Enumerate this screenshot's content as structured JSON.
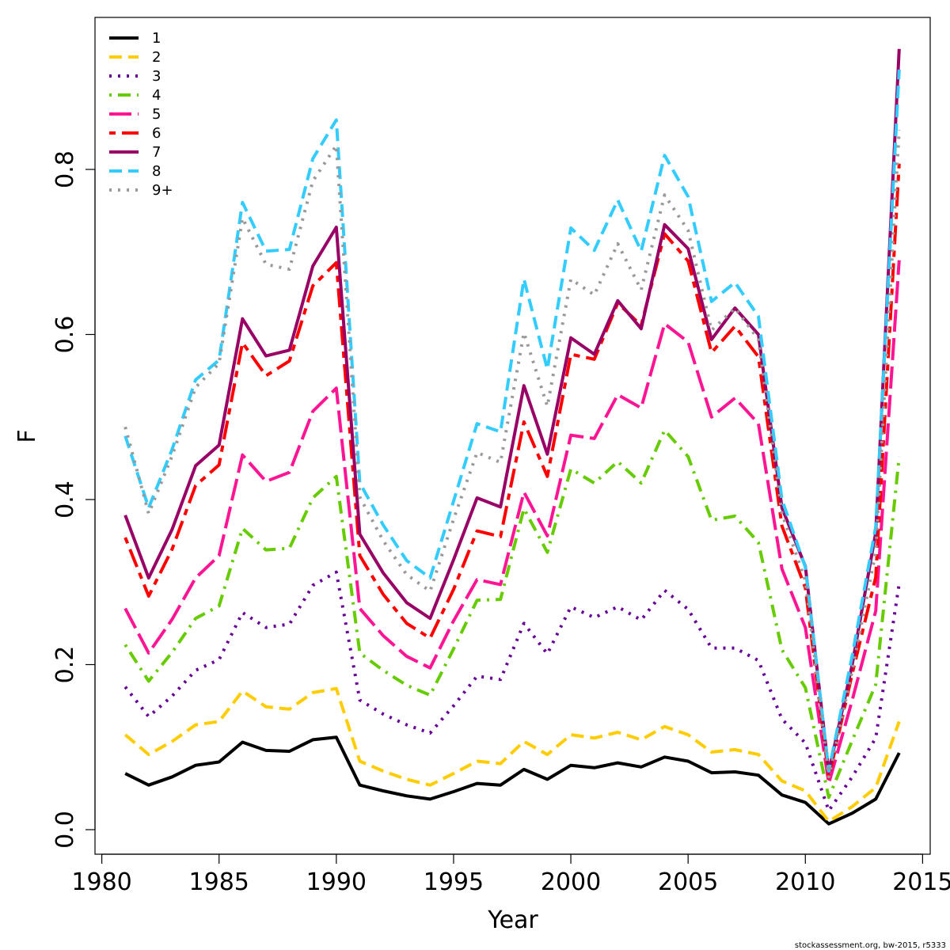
{
  "chart_data": {
    "type": "line",
    "xlabel": "Year",
    "ylabel": "F",
    "xlim": [
      1980,
      2015
    ],
    "ylim": [
      0.0,
      0.95
    ],
    "x_ticks": [
      1980,
      1985,
      1990,
      1995,
      2000,
      2005,
      2010,
      2015
    ],
    "x_tick_labels": [
      "1980",
      "1985",
      "1990",
      "1995",
      "2000",
      "2005",
      "2010",
      "2015"
    ],
    "y_ticks": [
      0.0,
      0.2,
      0.4,
      0.6,
      0.8
    ],
    "y_tick_labels": [
      "0.0",
      "0.2",
      "0.4",
      "0.6",
      "0.8"
    ],
    "grid": false,
    "legend_position": "top-left",
    "x": [
      1981,
      1982,
      1983,
      1984,
      1985,
      1986,
      1987,
      1988,
      1989,
      1990,
      1991,
      1992,
      1993,
      1994,
      1995,
      1996,
      1997,
      1998,
      1999,
      2000,
      2001,
      2002,
      2003,
      2004,
      2005,
      2006,
      2007,
      2008,
      2009,
      2010,
      2011,
      2012,
      2013,
      2014
    ],
    "series": [
      {
        "name": "1",
        "color": "#000000",
        "dash": "solid",
        "values": [
          0.068,
          0.054,
          0.064,
          0.078,
          0.082,
          0.106,
          0.096,
          0.095,
          0.109,
          0.112,
          0.054,
          0.047,
          0.041,
          0.037,
          0.046,
          0.056,
          0.054,
          0.073,
          0.061,
          0.078,
          0.075,
          0.081,
          0.076,
          0.088,
          0.083,
          0.069,
          0.07,
          0.066,
          0.042,
          0.033,
          0.007,
          0.02,
          0.037,
          0.093
        ]
      },
      {
        "name": "2",
        "color": "#FFCC00",
        "dash": "dashed",
        "values": [
          0.115,
          0.091,
          0.107,
          0.127,
          0.131,
          0.168,
          0.149,
          0.146,
          0.166,
          0.171,
          0.083,
          0.071,
          0.061,
          0.054,
          0.068,
          0.083,
          0.08,
          0.107,
          0.091,
          0.115,
          0.111,
          0.118,
          0.109,
          0.125,
          0.115,
          0.094,
          0.097,
          0.091,
          0.059,
          0.047,
          0.01,
          0.028,
          0.051,
          0.131
        ]
      },
      {
        "name": "3",
        "color": "#660099",
        "dash": "dotted",
        "values": [
          0.173,
          0.137,
          0.162,
          0.193,
          0.206,
          0.263,
          0.245,
          0.249,
          0.296,
          0.312,
          0.157,
          0.14,
          0.127,
          0.117,
          0.15,
          0.186,
          0.182,
          0.25,
          0.213,
          0.27,
          0.257,
          0.27,
          0.254,
          0.29,
          0.267,
          0.22,
          0.22,
          0.205,
          0.134,
          0.105,
          0.023,
          0.064,
          0.111,
          0.298
        ]
      },
      {
        "name": "4",
        "color": "#66CC00",
        "dash": "dotdash",
        "values": [
          0.224,
          0.18,
          0.215,
          0.256,
          0.271,
          0.365,
          0.339,
          0.341,
          0.402,
          0.428,
          0.214,
          0.193,
          0.175,
          0.163,
          0.219,
          0.278,
          0.279,
          0.389,
          0.336,
          0.437,
          0.42,
          0.446,
          0.42,
          0.484,
          0.452,
          0.375,
          0.38,
          0.348,
          0.218,
          0.172,
          0.039,
          0.108,
          0.176,
          0.452
        ]
      },
      {
        "name": "5",
        "color": "#FF1493",
        "dash": "longdash",
        "values": [
          0.268,
          0.214,
          0.255,
          0.305,
          0.332,
          0.454,
          0.422,
          0.433,
          0.507,
          0.535,
          0.268,
          0.235,
          0.21,
          0.196,
          0.253,
          0.303,
          0.297,
          0.409,
          0.356,
          0.478,
          0.474,
          0.527,
          0.511,
          0.613,
          0.591,
          0.5,
          0.523,
          0.492,
          0.316,
          0.245,
          0.056,
          0.157,
          0.265,
          0.69
        ]
      },
      {
        "name": "6",
        "color": "#FF0000",
        "dash": "twodash",
        "values": [
          0.354,
          0.283,
          0.34,
          0.417,
          0.442,
          0.59,
          0.55,
          0.568,
          0.659,
          0.687,
          0.332,
          0.285,
          0.25,
          0.232,
          0.291,
          0.362,
          0.355,
          0.494,
          0.428,
          0.576,
          0.57,
          0.638,
          0.611,
          0.722,
          0.689,
          0.578,
          0.61,
          0.573,
          0.368,
          0.293,
          0.063,
          0.189,
          0.306,
          0.807
        ]
      },
      {
        "name": "7",
        "color": "#990066",
        "dash": "solid",
        "values": [
          0.381,
          0.305,
          0.364,
          0.441,
          0.466,
          0.619,
          0.574,
          0.581,
          0.683,
          0.73,
          0.358,
          0.311,
          0.275,
          0.256,
          0.327,
          0.402,
          0.391,
          0.538,
          0.455,
          0.596,
          0.576,
          0.641,
          0.607,
          0.733,
          0.704,
          0.594,
          0.632,
          0.6,
          0.39,
          0.319,
          0.07,
          0.2,
          0.36,
          0.946
        ]
      },
      {
        "name": "8",
        "color": "#33CCFF",
        "dash": "dashed",
        "values": [
          0.477,
          0.39,
          0.461,
          0.545,
          0.569,
          0.76,
          0.701,
          0.703,
          0.813,
          0.86,
          0.42,
          0.369,
          0.326,
          0.305,
          0.398,
          0.492,
          0.482,
          0.667,
          0.558,
          0.729,
          0.702,
          0.763,
          0.701,
          0.817,
          0.767,
          0.64,
          0.663,
          0.622,
          0.4,
          0.318,
          0.071,
          0.211,
          0.367,
          0.921
        ]
      },
      {
        "name": "9+",
        "color": "#999999",
        "dash": "dotted",
        "values": [
          0.488,
          0.383,
          0.453,
          0.536,
          0.565,
          0.741,
          0.685,
          0.679,
          0.786,
          0.829,
          0.403,
          0.35,
          0.309,
          0.289,
          0.376,
          0.457,
          0.445,
          0.602,
          0.513,
          0.667,
          0.648,
          0.71,
          0.654,
          0.769,
          0.726,
          0.605,
          0.632,
          0.594,
          0.383,
          0.302,
          0.064,
          0.193,
          0.336,
          0.848
        ]
      }
    ]
  },
  "credit": "stockassessment.org, bw-2015, r5333"
}
